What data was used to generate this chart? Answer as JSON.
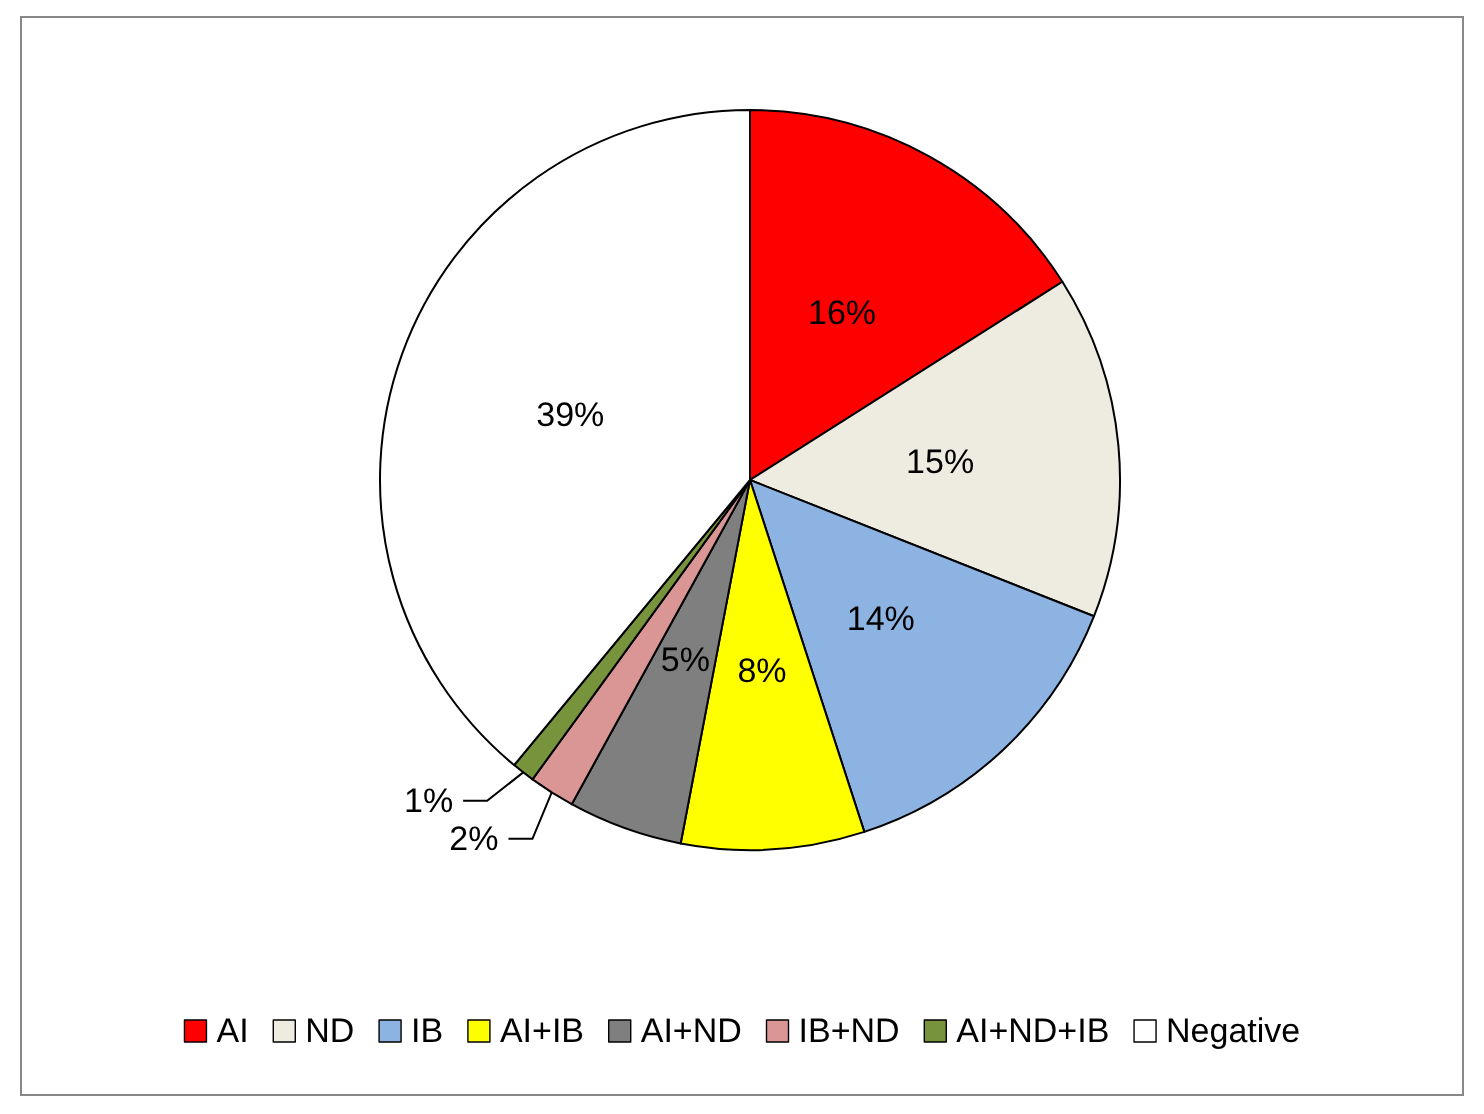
{
  "chart_data": {
    "type": "pie",
    "categories": [
      "AI",
      "ND",
      "IB",
      "AI+IB",
      "AI+ND",
      "IB+ND",
      "AI+ND+IB",
      "Negative"
    ],
    "values": [
      16,
      15,
      14,
      8,
      5,
      2,
      1,
      39
    ],
    "value_labels": [
      "16%",
      "15%",
      "14%",
      "8%",
      "5%",
      "2%",
      "1%",
      "39%"
    ],
    "colors": [
      "#ff0000",
      "#eeece1",
      "#8db3e2",
      "#ffff00",
      "#7f7f7f",
      "#d99694",
      "#77933c",
      "#ffffff"
    ],
    "legend": "bottom"
  }
}
